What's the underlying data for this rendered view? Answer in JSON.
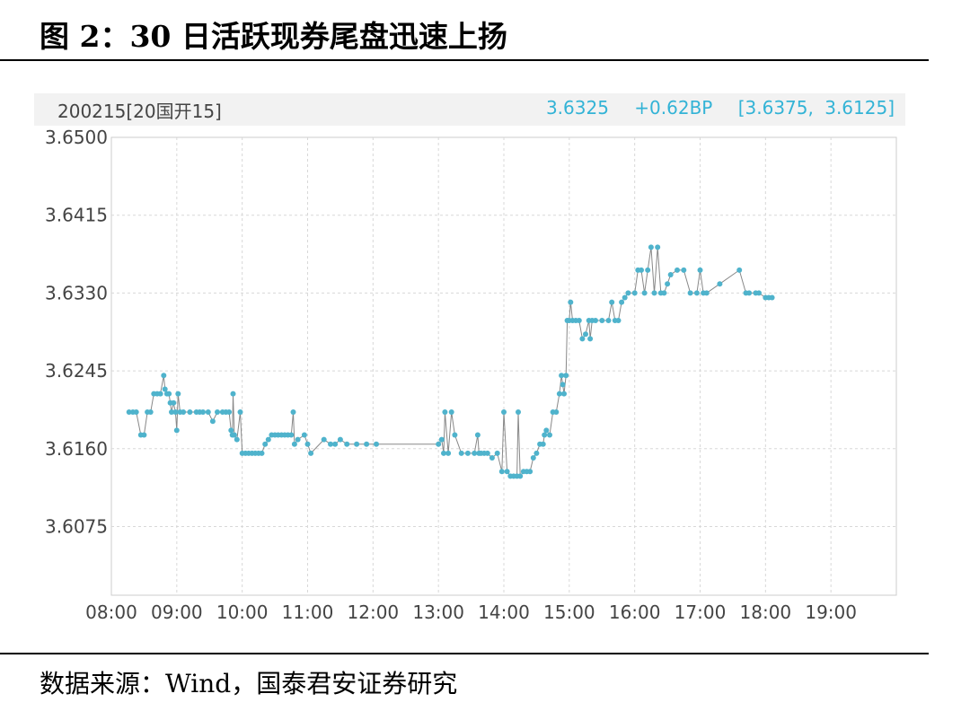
{
  "figure": {
    "title": "图 2：30 日活跃现券尾盘迅速上扬",
    "source": "数据来源：Wind，国泰君安证券研究"
  },
  "header": {
    "instrument": "200215[20国开15]",
    "last": "3.6325",
    "change": "+0.62BP",
    "range": "[3.6375, 3.6125]"
  },
  "colors": {
    "series": "#4fb3cc",
    "line": "#888888",
    "grid": "#d8d8d8",
    "accent": "#33b3d6"
  },
  "chart_data": {
    "type": "line",
    "title": "",
    "xlabel": "",
    "ylabel": "",
    "x_unit": "hours",
    "xlim": [
      8,
      20
    ],
    "ylim": [
      3.6,
      3.65
    ],
    "x_ticks": [
      "08:00",
      "09:00",
      "10:00",
      "11:00",
      "12:00",
      "13:00",
      "14:00",
      "15:00",
      "16:00",
      "17:00",
      "18:00",
      "19:00"
    ],
    "y_ticks": [
      "3.6500",
      "3.6415",
      "3.6330",
      "3.6245",
      "3.6160",
      "3.6075"
    ],
    "grid": true,
    "series": [
      {
        "points": [
          [
            8.27,
            3.62
          ],
          [
            8.33,
            3.62
          ],
          [
            8.38,
            3.62
          ],
          [
            8.45,
            3.6175
          ],
          [
            8.5,
            3.6175
          ],
          [
            8.55,
            3.62
          ],
          [
            8.6,
            3.62
          ],
          [
            8.65,
            3.622
          ],
          [
            8.7,
            3.622
          ],
          [
            8.75,
            3.622
          ],
          [
            8.8,
            3.624
          ],
          [
            8.82,
            3.6225
          ],
          [
            8.85,
            3.622
          ],
          [
            8.88,
            3.622
          ],
          [
            8.9,
            3.621
          ],
          [
            8.92,
            3.62
          ],
          [
            8.95,
            3.621
          ],
          [
            8.98,
            3.62
          ],
          [
            9.0,
            3.618
          ],
          [
            9.02,
            3.622
          ],
          [
            9.05,
            3.62
          ],
          [
            9.1,
            3.62
          ],
          [
            9.2,
            3.62
          ],
          [
            9.3,
            3.62
          ],
          [
            9.35,
            3.62
          ],
          [
            9.4,
            3.62
          ],
          [
            9.48,
            3.62
          ],
          [
            9.55,
            3.619
          ],
          [
            9.62,
            3.62
          ],
          [
            9.7,
            3.62
          ],
          [
            9.75,
            3.62
          ],
          [
            9.8,
            3.62
          ],
          [
            9.83,
            3.618
          ],
          [
            9.85,
            3.6175
          ],
          [
            9.86,
            3.622
          ],
          [
            9.88,
            3.6175
          ],
          [
            9.92,
            3.617
          ],
          [
            9.97,
            3.62
          ],
          [
            10.0,
            3.6155
          ],
          [
            10.05,
            3.6155
          ],
          [
            10.1,
            3.6155
          ],
          [
            10.15,
            3.6155
          ],
          [
            10.2,
            3.6155
          ],
          [
            10.25,
            3.6155
          ],
          [
            10.3,
            3.6155
          ],
          [
            10.35,
            3.6165
          ],
          [
            10.4,
            3.617
          ],
          [
            10.45,
            3.6175
          ],
          [
            10.5,
            3.6175
          ],
          [
            10.55,
            3.6175
          ],
          [
            10.6,
            3.6175
          ],
          [
            10.65,
            3.6175
          ],
          [
            10.7,
            3.6175
          ],
          [
            10.75,
            3.6175
          ],
          [
            10.78,
            3.62
          ],
          [
            10.8,
            3.6165
          ],
          [
            10.85,
            3.617
          ],
          [
            10.95,
            3.6175
          ],
          [
            11.0,
            3.6165
          ],
          [
            11.05,
            3.6155
          ],
          [
            11.25,
            3.617
          ],
          [
            11.35,
            3.6165
          ],
          [
            11.42,
            3.6165
          ],
          [
            11.5,
            3.617
          ],
          [
            11.6,
            3.6165
          ],
          [
            11.75,
            3.6165
          ],
          [
            11.9,
            3.6165
          ],
          [
            12.05,
            3.6165
          ],
          [
            13.0,
            3.6165
          ],
          [
            13.05,
            3.617
          ],
          [
            13.08,
            3.6155
          ],
          [
            13.1,
            3.62
          ],
          [
            13.15,
            3.6155
          ],
          [
            13.2,
            3.62
          ],
          [
            13.25,
            3.6175
          ],
          [
            13.35,
            3.6155
          ],
          [
            13.45,
            3.6155
          ],
          [
            13.55,
            3.6155
          ],
          [
            13.6,
            3.6175
          ],
          [
            13.62,
            3.6155
          ],
          [
            13.65,
            3.6155
          ],
          [
            13.7,
            3.6155
          ],
          [
            13.75,
            3.6155
          ],
          [
            13.82,
            3.615
          ],
          [
            13.9,
            3.6155
          ],
          [
            13.97,
            3.6135
          ],
          [
            14.0,
            3.62
          ],
          [
            14.05,
            3.6135
          ],
          [
            14.1,
            3.613
          ],
          [
            14.15,
            3.613
          ],
          [
            14.2,
            3.613
          ],
          [
            14.22,
            3.62
          ],
          [
            14.25,
            3.613
          ],
          [
            14.3,
            3.6135
          ],
          [
            14.35,
            3.6135
          ],
          [
            14.4,
            3.6135
          ],
          [
            14.45,
            3.615
          ],
          [
            14.5,
            3.6155
          ],
          [
            14.55,
            3.6165
          ],
          [
            14.6,
            3.6165
          ],
          [
            14.62,
            3.6175
          ],
          [
            14.65,
            3.618
          ],
          [
            14.7,
            3.6175
          ],
          [
            14.75,
            3.62
          ],
          [
            14.8,
            3.62
          ],
          [
            14.85,
            3.622
          ],
          [
            14.88,
            3.624
          ],
          [
            14.9,
            3.623
          ],
          [
            14.92,
            3.622
          ],
          [
            14.95,
            3.624
          ],
          [
            14.97,
            3.63
          ],
          [
            15.0,
            3.63
          ],
          [
            15.02,
            3.632
          ],
          [
            15.05,
            3.63
          ],
          [
            15.1,
            3.63
          ],
          [
            15.15,
            3.63
          ],
          [
            15.2,
            3.628
          ],
          [
            15.25,
            3.6285
          ],
          [
            15.3,
            3.63
          ],
          [
            15.32,
            3.628
          ],
          [
            15.35,
            3.63
          ],
          [
            15.4,
            3.63
          ],
          [
            15.5,
            3.63
          ],
          [
            15.6,
            3.63
          ],
          [
            15.65,
            3.632
          ],
          [
            15.7,
            3.63
          ],
          [
            15.75,
            3.63
          ],
          [
            15.8,
            3.632
          ],
          [
            15.85,
            3.6325
          ],
          [
            15.9,
            3.633
          ],
          [
            16.0,
            3.633
          ],
          [
            16.05,
            3.6355
          ],
          [
            16.1,
            3.6355
          ],
          [
            16.15,
            3.633
          ],
          [
            16.2,
            3.6355
          ],
          [
            16.25,
            3.638
          ],
          [
            16.3,
            3.633
          ],
          [
            16.35,
            3.638
          ],
          [
            16.4,
            3.633
          ],
          [
            16.45,
            3.633
          ],
          [
            16.5,
            3.634
          ],
          [
            16.55,
            3.635
          ],
          [
            16.65,
            3.6355
          ],
          [
            16.75,
            3.6355
          ],
          [
            16.85,
            3.633
          ],
          [
            16.95,
            3.633
          ],
          [
            17.0,
            3.6355
          ],
          [
            17.05,
            3.633
          ],
          [
            17.1,
            3.633
          ],
          [
            17.3,
            3.634
          ],
          [
            17.6,
            3.6355
          ],
          [
            17.7,
            3.633
          ],
          [
            17.75,
            3.633
          ],
          [
            17.85,
            3.633
          ],
          [
            17.9,
            3.633
          ],
          [
            18.0,
            3.6325
          ],
          [
            18.05,
            3.6325
          ],
          [
            18.1,
            3.6325
          ]
        ]
      }
    ]
  }
}
